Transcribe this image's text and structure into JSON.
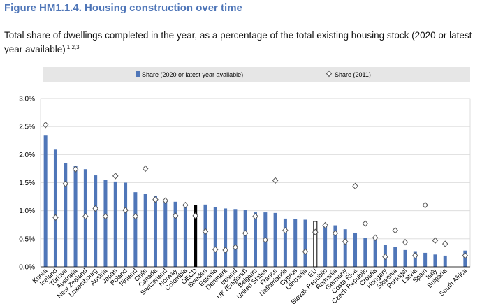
{
  "title": "Figure HM1.1.4. Housing construction over time",
  "subtitle": "Total share of dwellings completed in the year, as a percentage of the total existing housing stock (2020 or latest year available)",
  "subtitle_notes": "1,2,3",
  "colors": {
    "title": "#4f76b8",
    "bar": "#4f76b8",
    "oecd_bar": "#000000",
    "eu_bar": "#ffffff",
    "legend_bg": "#e6e6e6",
    "marker_stroke": "#555555"
  },
  "chart_data": {
    "type": "bar",
    "title": "",
    "xlabel": "",
    "ylabel": "",
    "ylim": [
      0,
      3.0
    ],
    "yticks": [
      "0.0%",
      "0.5%",
      "1.0%",
      "1.5%",
      "2.0%",
      "2.5%",
      "3.0%"
    ],
    "grid": true,
    "legend_position": "top",
    "categories": [
      "Korea",
      "Iceland",
      "Türkiye",
      "Australia",
      "New Zealand",
      "Luxembourg",
      "Austria",
      "Japan",
      "Poland",
      "Finland",
      "Chile",
      "Canada",
      "Switzerland",
      "Norway",
      "Colombia",
      "OECD",
      "Sweden",
      "Estonia",
      "Denmark",
      "Ireland",
      "UK (England)",
      "Belgium",
      "United States",
      "France",
      "Netherlands",
      "Cyprus",
      "Lithuania",
      "EU",
      "Slovak Republic",
      "Romania",
      "Germany",
      "Costa Rica",
      "Czech Republic",
      "Croatia",
      "Hungary",
      "Slovenia",
      "Portugal",
      "Latvia",
      "Spain",
      "Italy",
      "Bulgaria",
      "",
      "South Africa"
    ],
    "series": [
      {
        "name": "Share (2020 or latest year available)",
        "marker": "bar",
        "values": [
          2.35,
          2.1,
          1.85,
          1.8,
          1.74,
          1.63,
          1.55,
          1.52,
          1.5,
          1.33,
          1.3,
          1.27,
          1.2,
          1.16,
          1.13,
          1.1,
          1.11,
          1.06,
          1.04,
          1.03,
          1.01,
          0.97,
          0.97,
          0.96,
          0.86,
          0.85,
          0.84,
          0.81,
          0.77,
          0.74,
          0.67,
          0.61,
          0.52,
          0.51,
          0.39,
          0.35,
          0.3,
          0.28,
          0.25,
          0.22,
          0.2,
          null,
          0.29
        ]
      },
      {
        "name": "Share (2011)",
        "marker": "diamond",
        "values": [
          2.53,
          0.88,
          1.48,
          1.74,
          0.9,
          1.04,
          0.9,
          1.62,
          1.01,
          0.9,
          1.75,
          1.2,
          1.18,
          0.91,
          1.1,
          0.91,
          0.63,
          0.31,
          0.3,
          0.35,
          0.6,
          0.9,
          0.48,
          1.54,
          0.65,
          null,
          0.27,
          0.62,
          0.74,
          0.6,
          0.45,
          1.44,
          0.77,
          0.52,
          0.18,
          0.65,
          0.44,
          0.2,
          1.1,
          0.47,
          0.41,
          null,
          0.2
        ]
      }
    ],
    "highlight": {
      "OECD": "oecd_bar",
      "EU": "eu_bar"
    }
  }
}
